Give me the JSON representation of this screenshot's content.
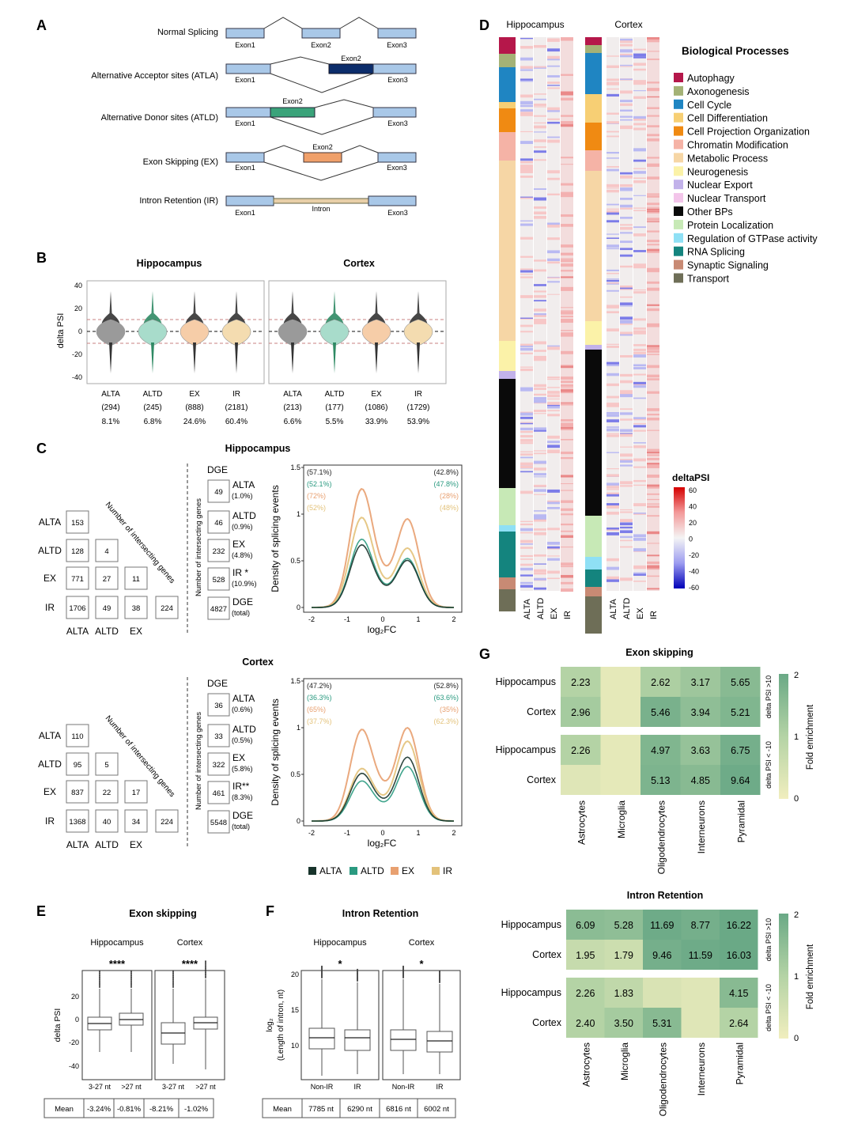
{
  "panel_labels": [
    "A",
    "B",
    "C",
    "D",
    "E",
    "F",
    "G"
  ],
  "panelA": {
    "events": [
      {
        "name": "Normal Splicing",
        "exons": [
          "Exon1",
          "Exon2",
          "Exon3"
        ]
      },
      {
        "name": "Alternative Acceptor sites (ATLA)",
        "exons": [
          "Exon1",
          "Exon2",
          "Exon3"
        ]
      },
      {
        "name": "Alternative Donor sites (ATLD)",
        "exons": [
          "Exon1",
          "Exon2",
          "Exon3"
        ]
      },
      {
        "name": "Exon Skipping (EX)",
        "exons": [
          "Exon1",
          "Exon2",
          "Exon3"
        ]
      },
      {
        "name": "Intron Retention (IR)",
        "exons": [
          "Exon1",
          "Intron",
          "Exon3"
        ]
      }
    ],
    "colors": {
      "exon": "#a9c8e8",
      "atla": "#0c2d6b",
      "atld": "#3aa37a",
      "ex": "#f0a06a",
      "ir": "#e8cfa8"
    }
  },
  "panelB": {
    "titles": [
      "Hippocampus",
      "Cortex"
    ],
    "ylabel": "delta PSI",
    "yticks": [
      "40",
      "20",
      "0",
      "-20",
      "-40"
    ],
    "hippocampus": [
      {
        "event": "ALTA",
        "n": "(294)",
        "pct": "8.1%"
      },
      {
        "event": "ALTD",
        "n": "(245)",
        "pct": "6.8%"
      },
      {
        "event": "EX",
        "n": "(888)",
        "pct": "24.6%"
      },
      {
        "event": "IR",
        "n": "(2181)",
        "pct": "60.4%"
      }
    ],
    "cortex": [
      {
        "event": "ALTA",
        "n": "(213)",
        "pct": "6.6%"
      },
      {
        "event": "ALTD",
        "n": "(177)",
        "pct": "5.5%"
      },
      {
        "event": "EX",
        "n": "(1086)",
        "pct": "33.9%"
      },
      {
        "event": "IR",
        "n": "(1729)",
        "pct": "53.9%"
      }
    ],
    "violin_colors": [
      "#9a9a9a",
      "#a8dccb",
      "#f6cda8",
      "#f4dcb0"
    ],
    "tail_colors": [
      "#333333",
      "#2f8a64",
      "#333333",
      "#333333"
    ]
  },
  "panelC": {
    "sections": [
      {
        "title": "Hippocampus",
        "matrix_rows": [
          "ALTA",
          "ALTD",
          "EX",
          "IR"
        ],
        "matrix_cols": [
          "ALTA",
          "ALTD",
          "EX"
        ],
        "matrix": [
          [
            "153"
          ],
          [
            "128",
            "4"
          ],
          [
            "771",
            "27",
            "11"
          ],
          [
            "1706",
            "49",
            "38",
            "224"
          ]
        ],
        "diag_label": "Number of intersecting genes",
        "dge_header": "DGE",
        "dge_axis": "Number of intersecting genes",
        "dge": [
          {
            "n": "49",
            "label": "ALTA",
            "pct": "(1.0%)"
          },
          {
            "n": "46",
            "label": "ALTD",
            "pct": "(0.9%)"
          },
          {
            "n": "232",
            "label": "EX",
            "pct": "(4.8%)"
          },
          {
            "n": "528",
            "label": "IR *",
            "pct": "(10.9%)"
          },
          {
            "n": "4827",
            "label": "DGE",
            "pct": "(total)"
          }
        ],
        "density_left": [
          "(57.1%)",
          "(52.1%)",
          "(72%)",
          "(52%)"
        ],
        "density_right": [
          "(42.8%)",
          "(47.8%)",
          "(28%)",
          "(48%)"
        ]
      },
      {
        "title": "Cortex",
        "matrix_rows": [
          "ALTA",
          "ALTD",
          "EX",
          "IR"
        ],
        "matrix_cols": [
          "ALTA",
          "ALTD",
          "EX"
        ],
        "matrix": [
          [
            "110"
          ],
          [
            "95",
            "5"
          ],
          [
            "837",
            "22",
            "17"
          ],
          [
            "1368",
            "40",
            "34",
            "224"
          ]
        ],
        "diag_label": "Number of intersecting genes",
        "dge_header": "DGE",
        "dge_axis": "Number of intersecting genes",
        "dge": [
          {
            "n": "36",
            "label": "ALTA",
            "pct": "(0.6%)"
          },
          {
            "n": "33",
            "label": "ALTD",
            "pct": "(0.5%)"
          },
          {
            "n": "322",
            "label": "EX",
            "pct": "(5.8%)"
          },
          {
            "n": "461",
            "label": "IR**",
            "pct": "(8.3%)"
          },
          {
            "n": "5548",
            "label": "DGE",
            "pct": "(total)"
          }
        ],
        "density_left": [
          "(47.2%)",
          "(36.3%)",
          "(65%)",
          "(37.7%)"
        ],
        "density_right": [
          "(52.8%)",
          "(63.6%)",
          "(35%)",
          "(62.3%)"
        ]
      }
    ],
    "density_ylabel": "Density of splicing events",
    "density_xlabel": "log₂FC",
    "density_xticks": [
      "-2",
      "-1",
      "0",
      "1",
      "2"
    ],
    "density_yticks": [
      "1.5",
      "1",
      "0.5",
      "0"
    ],
    "legend": [
      {
        "name": "ALTA",
        "color": "#17332b"
      },
      {
        "name": "ALTD",
        "color": "#2a9a80"
      },
      {
        "name": "EX",
        "color": "#e8a070"
      },
      {
        "name": "IR",
        "color": "#e3c27a"
      }
    ]
  },
  "panelD": {
    "titles": [
      "Hippocampus",
      "Cortex"
    ],
    "col_labels": [
      "ALTA",
      "ALTD",
      "EX",
      "IR"
    ],
    "legend_title": "Biological Processes",
    "processes": [
      {
        "name": "Autophagy",
        "color": "#b5174a"
      },
      {
        "name": "Axonogenesis",
        "color": "#a4b276"
      },
      {
        "name": "Cell Cycle",
        "color": "#1f85c2"
      },
      {
        "name": "Cell Differentiation",
        "color": "#f7cf74"
      },
      {
        "name": "Cell Projection Organization",
        "color": "#f08a12"
      },
      {
        "name": "Chromatin Modification",
        "color": "#f5b3a6"
      },
      {
        "name": "Metabolic Process",
        "color": "#f6d6a5"
      },
      {
        "name": "Neurogenesis",
        "color": "#fbf2a8"
      },
      {
        "name": "Nuclear Export",
        "color": "#c2b2ea"
      },
      {
        "name": "Nuclear Transport",
        "color": "#f3c5ea"
      },
      {
        "name": "Other BPs",
        "color": "#0a0a0a"
      },
      {
        "name": "Protein Localization",
        "color": "#c7e9b6"
      },
      {
        "name": "Regulation of GTPase activity",
        "color": "#8fe0f5"
      },
      {
        "name": "RNA Splicing",
        "color": "#14847e"
      },
      {
        "name": "Synaptic Signaling",
        "color": "#c88a74"
      },
      {
        "name": "Transport",
        "color": "#6e6e57"
      }
    ],
    "scale_title": "deltaPSI",
    "scale_ticks": [
      "60",
      "40",
      "20",
      "0",
      "-20",
      "-40",
      "-60"
    ]
  },
  "panelE": {
    "title": "Exon skipping",
    "groups": [
      "Hippocampus",
      "Cortex"
    ],
    "sig": [
      "****",
      "****"
    ],
    "ylabel": "delta PSI",
    "yticks": [
      "20",
      "0",
      "-20",
      "-40"
    ],
    "xcats": [
      "3-27 nt",
      ">27 nt",
      "3-27 nt",
      ">27 nt"
    ],
    "mean_label": "Mean",
    "means": [
      "-3.24%",
      "-0.81%",
      "-8.21%",
      "-1.02%"
    ]
  },
  "panelF": {
    "title": "Intron Retention",
    "groups": [
      "Hippocampus",
      "Cortex"
    ],
    "sig": [
      "*",
      "*"
    ],
    "ylabel_line1": "log₂",
    "ylabel_line2": "(Length of intron, nt)",
    "yticks": [
      "20",
      "15",
      "10"
    ],
    "xcats": [
      "Non-IR",
      "IR",
      "Non-IR",
      "IR"
    ],
    "mean_label": "Mean",
    "means": [
      "7785 nt",
      "6290 nt",
      "6816 nt",
      "6002 nt"
    ]
  },
  "panelG": {
    "heatmaps": [
      {
        "title": "Exon skipping",
        "rows": [
          "Hippocampus",
          "Cortex",
          "Hippocampus",
          "Cortex"
        ],
        "values": [
          [
            "2.23",
            "",
            "2.62",
            "3.17",
            "5.65"
          ],
          [
            "2.96",
            "",
            "5.46",
            "3.94",
            "5.21"
          ],
          [
            "2.26",
            "",
            "4.97",
            "3.63",
            "6.75"
          ],
          [
            "",
            "",
            "5.13",
            "4.85",
            "9.64"
          ]
        ],
        "fold": [
          [
            1.0,
            0.2,
            1.1,
            1.3,
            1.6
          ],
          [
            1.2,
            0.2,
            1.8,
            1.5,
            1.7
          ],
          [
            1.0,
            0.2,
            1.7,
            1.4,
            1.85
          ],
          [
            0.3,
            0.2,
            1.75,
            1.6,
            1.95
          ]
        ]
      },
      {
        "title": "Intron Retention",
        "rows": [
          "Hippocampus",
          "Cortex",
          "Hippocampus",
          "Cortex"
        ],
        "values": [
          [
            "6.09",
            "5.28",
            "11.69",
            "8.77",
            "16.22"
          ],
          [
            "1.95",
            "1.79",
            "9.46",
            "11.59",
            "16.03"
          ],
          [
            "2.26",
            "1.83",
            "",
            "",
            "4.15"
          ],
          [
            "2.40",
            "3.50",
            "5.31",
            "",
            "2.64"
          ]
        ],
        "fold": [
          [
            1.55,
            1.5,
            1.95,
            1.85,
            2.0
          ],
          [
            0.7,
            0.6,
            1.85,
            1.95,
            2.0
          ],
          [
            1.0,
            0.8,
            0.4,
            0.3,
            1.6
          ],
          [
            1.0,
            1.2,
            1.6,
            0.3,
            1.0
          ]
        ]
      }
    ],
    "cols": [
      "Astrocytes",
      "Microglia",
      "Oligodendrocytes",
      "Interneurons",
      "Pyramidal"
    ],
    "side_labels": [
      "delta PSI >10",
      "delta PSI < -10"
    ],
    "scale_label": "Fold enrichment",
    "scale_ticks": [
      "2",
      "1",
      "0"
    ]
  }
}
